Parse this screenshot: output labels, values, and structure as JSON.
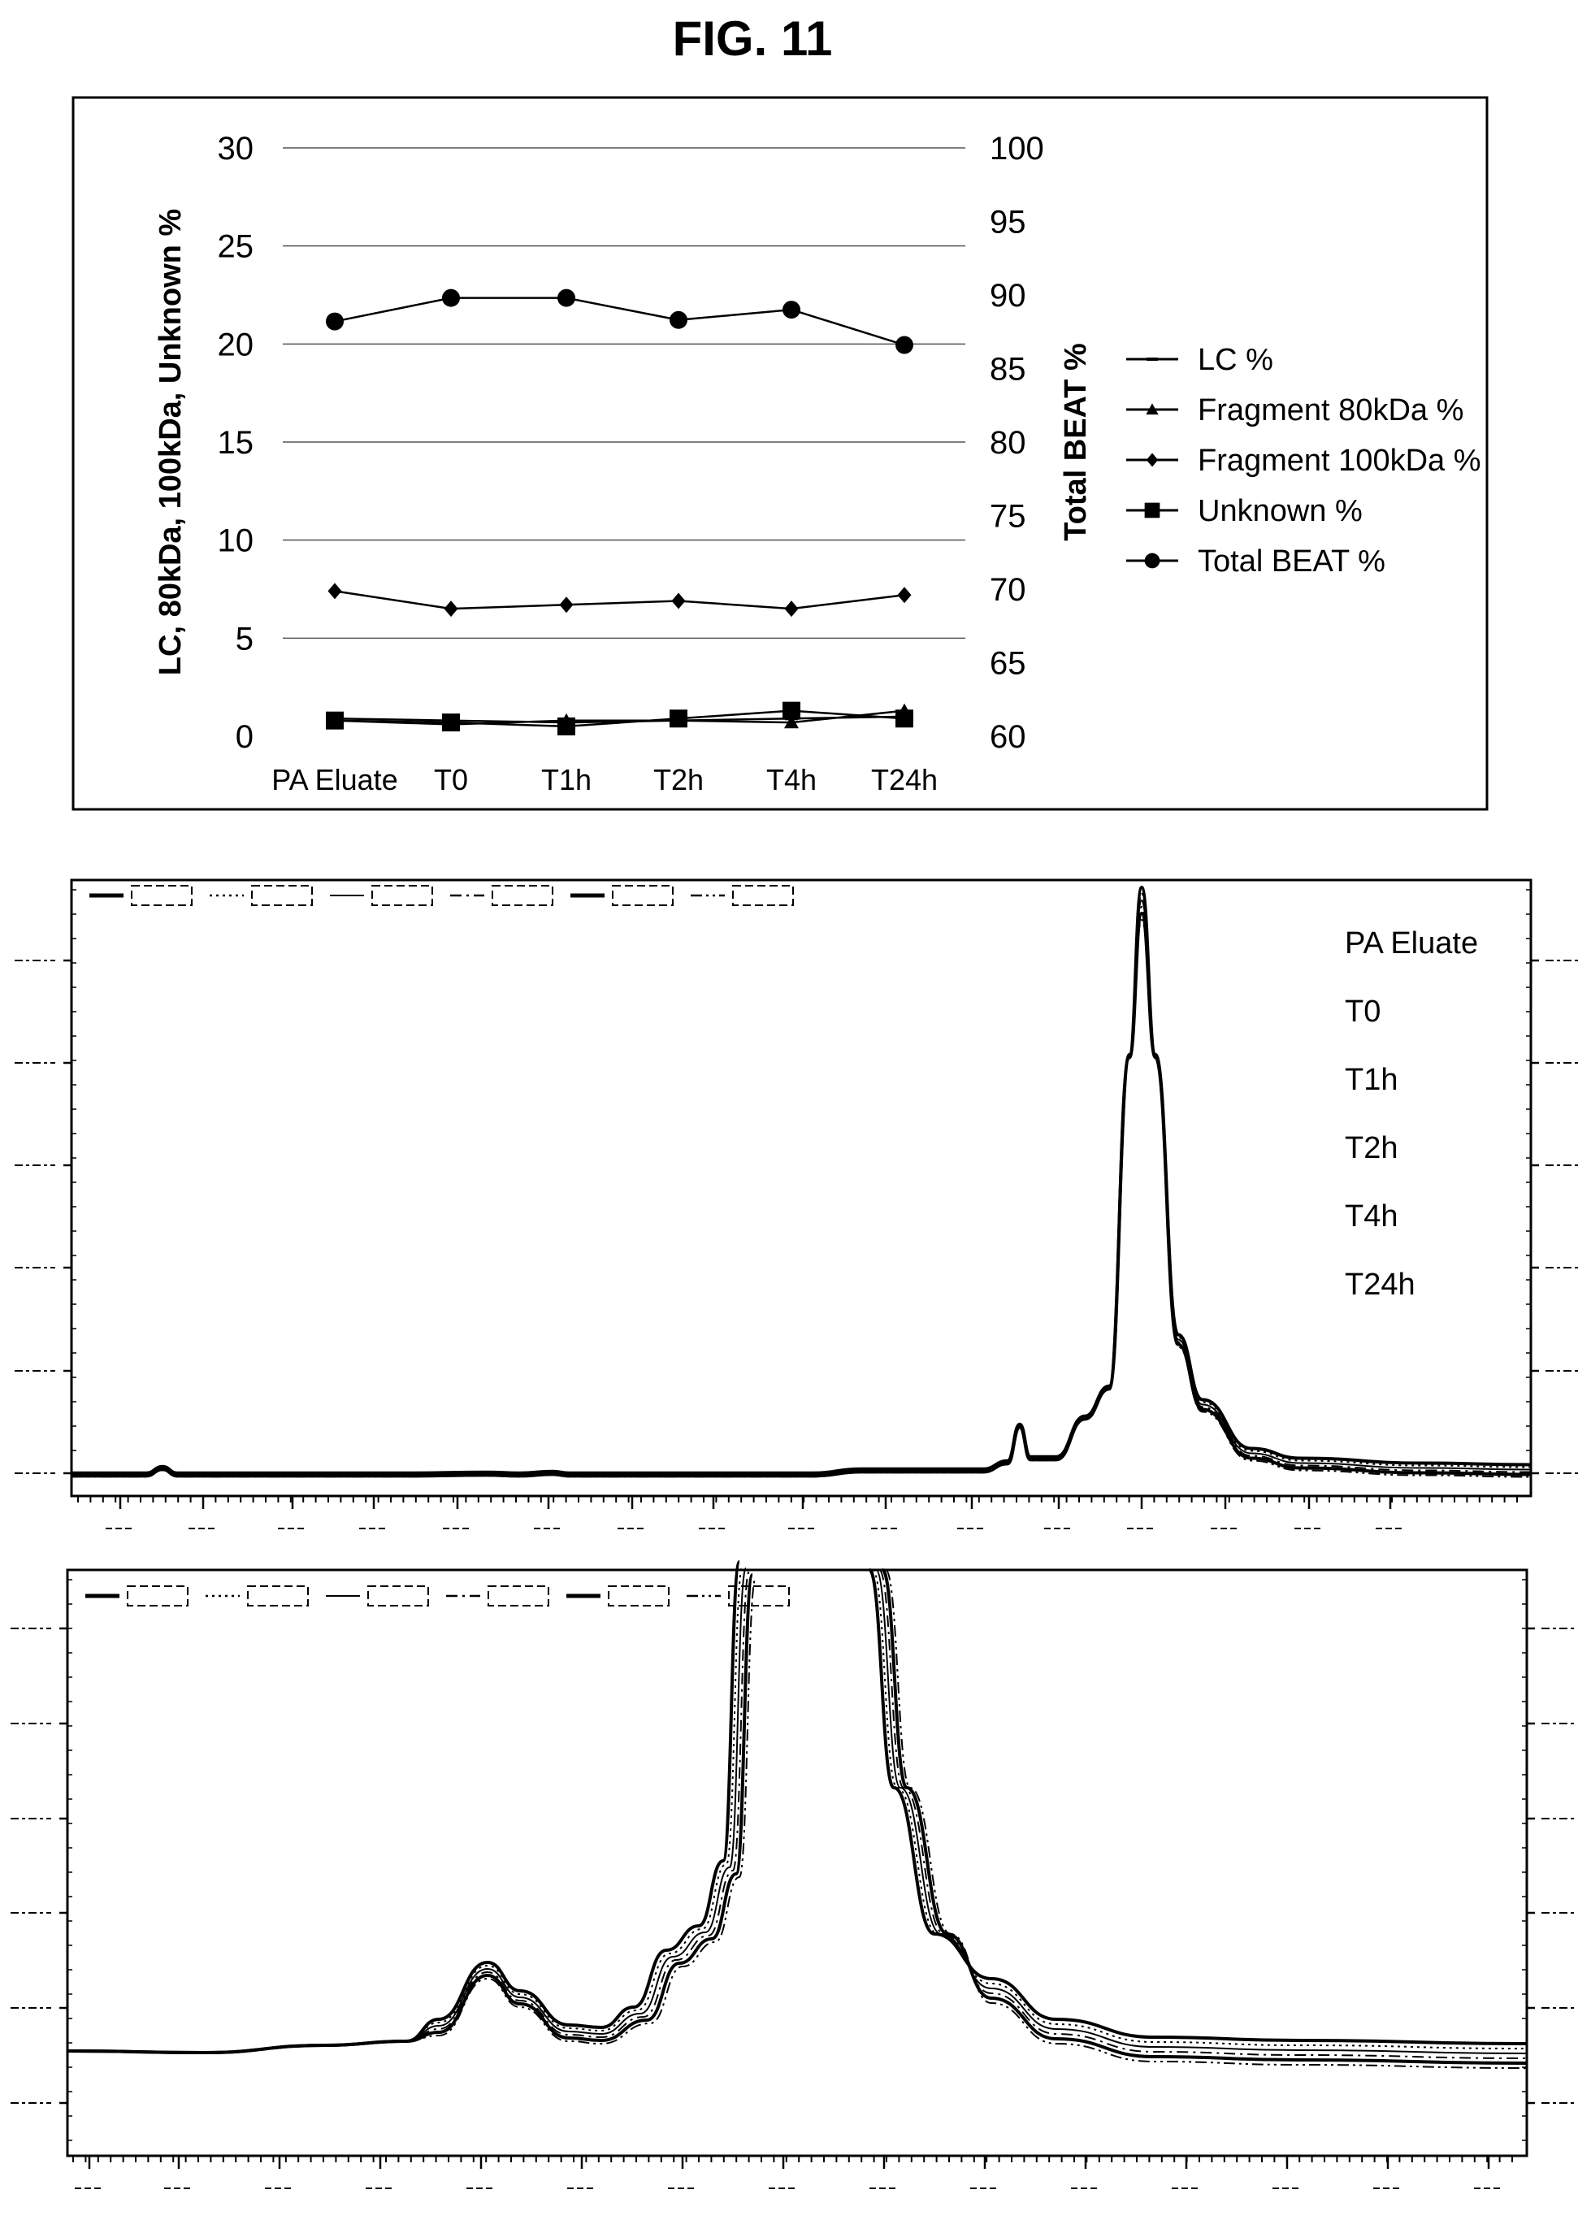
{
  "figure": {
    "title": "FIG. 11"
  },
  "chart_data": [
    {
      "type": "line",
      "categories": [
        "PA Eluate",
        "T0",
        "T1h",
        "T2h",
        "T4h",
        "T24h"
      ],
      "ylabel": "LC, 80kDa, 100kDa, Unknown %",
      "y2label": "Total BEAT %",
      "ylim": [
        0,
        30
      ],
      "y2lim": [
        60,
        100
      ],
      "yticks": [
        0,
        5,
        10,
        15,
        20,
        25,
        30
      ],
      "y2ticks": [
        60,
        65,
        70,
        75,
        80,
        85,
        90,
        95,
        100
      ],
      "grid": true,
      "legend_position": "right",
      "series": [
        {
          "name": "LC %",
          "marker": "dash",
          "axis": "left",
          "values": [
            0.9,
            0.8,
            0.7,
            0.8,
            0.9,
            1.0
          ]
        },
        {
          "name": "Fragment 80kDa %",
          "marker": "triangle",
          "axis": "left",
          "values": [
            0.8,
            0.6,
            0.8,
            0.8,
            0.7,
            1.3
          ]
        },
        {
          "name": "Fragment 100kDa %",
          "marker": "diamond",
          "axis": "left",
          "values": [
            7.4,
            6.5,
            6.7,
            6.9,
            6.5,
            7.2
          ]
        },
        {
          "name": "Unknown %",
          "marker": "square",
          "axis": "left",
          "values": [
            0.8,
            0.7,
            0.5,
            0.9,
            1.3,
            0.9
          ]
        },
        {
          "name": "Total BEAT %",
          "marker": "circle",
          "axis": "right",
          "values": [
            88.2,
            89.8,
            89.8,
            88.3,
            89.0,
            86.6
          ]
        }
      ]
    },
    {
      "type": "line",
      "description_kind": "chromatogram overlay",
      "legend_position": "top-left",
      "samples": [
        "PA Eluate",
        "T0",
        "T1h",
        "T2h",
        "T4h",
        "T24h"
      ],
      "dash_styles": [
        "thick-solid",
        "dotted",
        "solid",
        "dash-dot",
        "thick-solid",
        "dash-dot-dot"
      ]
    },
    {
      "type": "line",
      "description_kind": "chromatogram overlay zoomed",
      "legend_position": "top-left",
      "dash_styles": [
        "thick-solid",
        "dotted",
        "solid",
        "dash-dot",
        "thick-solid",
        "dash-dot-dot"
      ]
    }
  ]
}
